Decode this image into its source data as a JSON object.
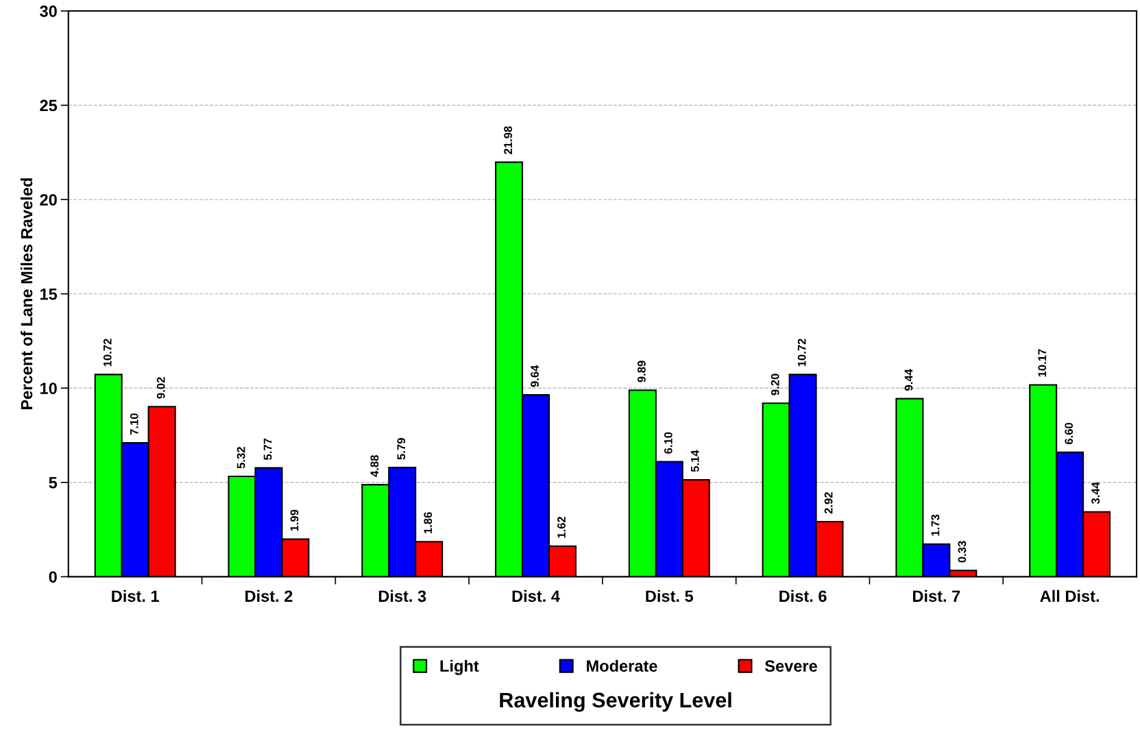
{
  "chart_data": {
    "type": "bar",
    "ylabel": "Percent of Lane Miles Raveled",
    "legend_title": "Raveling Severity Level",
    "categories": [
      "Dist. 1",
      "Dist. 2",
      "Dist. 3",
      "Dist. 4",
      "Dist. 5",
      "Dist. 6",
      "Dist. 7",
      "All Dist."
    ],
    "series": [
      {
        "name": "Light",
        "color": "#00ff00",
        "values": [
          10.72,
          5.32,
          4.88,
          21.98,
          9.89,
          9.2,
          9.44,
          10.17
        ],
        "value_labels": [
          "10.72",
          "5.32",
          "4.88",
          "21.98",
          "9.89",
          "9.20",
          "9.44",
          "10.17"
        ]
      },
      {
        "name": "Moderate",
        "color": "#0000ff",
        "values": [
          7.1,
          5.77,
          5.79,
          9.64,
          6.1,
          10.72,
          1.73,
          6.6
        ],
        "value_labels": [
          "7.10",
          "5.77",
          "5.79",
          "9.64",
          "6.10",
          "10.72",
          "1.73",
          "6.60"
        ]
      },
      {
        "name": "Severe",
        "color": "#ff0000",
        "values": [
          9.02,
          1.99,
          1.86,
          1.62,
          5.14,
          2.92,
          0.33,
          3.44
        ],
        "value_labels": [
          "9.02",
          "1.99",
          "1.86",
          "1.62",
          "5.14",
          "2.92",
          "0.33",
          "3.44"
        ]
      }
    ],
    "ylim": [
      0,
      30
    ],
    "yticks": [
      0,
      5,
      10,
      15,
      20,
      25,
      30
    ],
    "grid": "y",
    "legend": "bottom"
  }
}
